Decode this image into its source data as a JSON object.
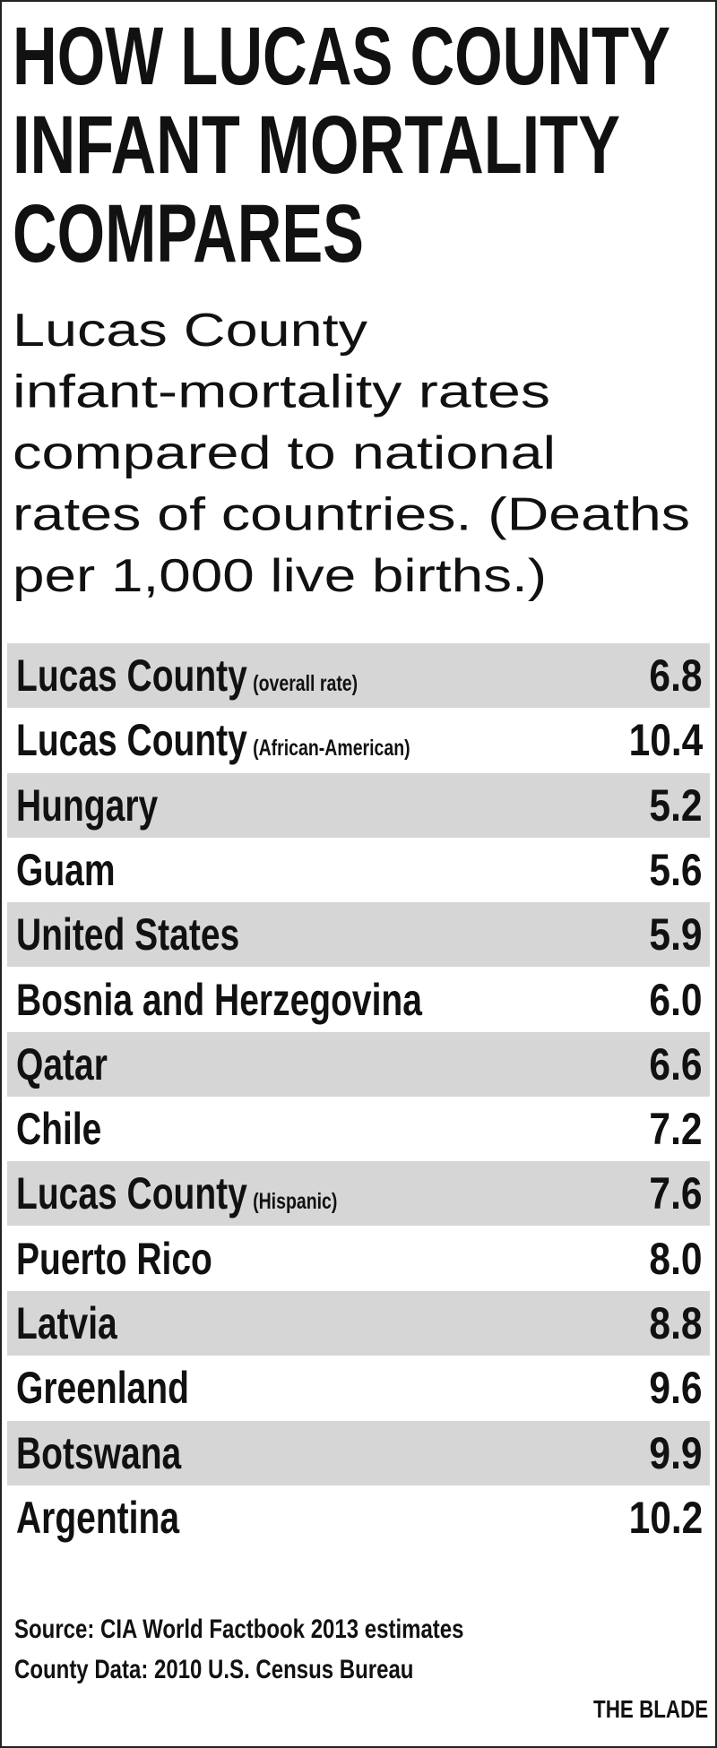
{
  "header": {
    "title_lines": [
      "HOW LUCAS COUNTY",
      "INFANT MORTALITY",
      "COMPARES"
    ],
    "subtitle_lines": [
      "Lucas County",
      "infant-mortality rates",
      "compared to national",
      "rates of countries. (Deaths",
      "per 1,000 live births.)"
    ]
  },
  "table": {
    "rows": [
      {
        "name": "Lucas County",
        "qualifier": "(overall rate)",
        "value": "6.8"
      },
      {
        "name": "Lucas County",
        "qualifier": "(African-American)",
        "value": "10.4"
      },
      {
        "name": "Hungary",
        "value": "5.2"
      },
      {
        "name": "Guam",
        "value": "5.6"
      },
      {
        "name": "United States",
        "value": "5.9"
      },
      {
        "name": "Bosnia and Herzegovina",
        "value": "6.0"
      },
      {
        "name": "Qatar",
        "value": "6.6"
      },
      {
        "name": "Chile",
        "value": "7.2"
      },
      {
        "name": "Lucas County",
        "qualifier": "(Hispanic)",
        "value": "7.6"
      },
      {
        "name": "Puerto Rico",
        "value": "8.0"
      },
      {
        "name": "Latvia",
        "value": "8.8"
      },
      {
        "name": "Greenland",
        "value": "9.6"
      },
      {
        "name": "Botswana",
        "value": "9.9"
      },
      {
        "name": "Argentina",
        "value": "10.2"
      }
    ]
  },
  "footer": {
    "source_lines": [
      "Source: CIA World Factbook 2013 estimates",
      "County Data: 2010 U.S. Census Bureau"
    ],
    "credit": "THE BLADE"
  }
}
